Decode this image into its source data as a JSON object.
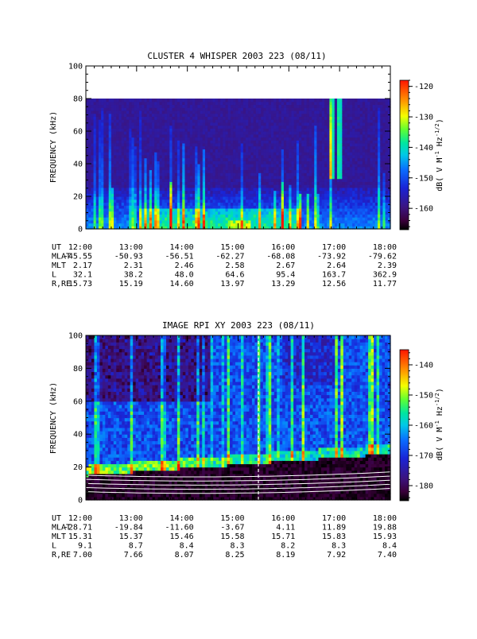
{
  "chart_data": [
    {
      "type": "heatmap",
      "title": "CLUSTER 4 WHISPER 2003 223 (08/11)",
      "ylabel": "FREQUENCY (kHz)",
      "ylim": [
        0,
        100
      ],
      "y_ticks": [
        "0",
        "20",
        "40",
        "60",
        "80",
        "100"
      ],
      "x_ticks": [
        "12:00",
        "13:00",
        "14:00",
        "15:00",
        "16:00",
        "17:00",
        "18:00"
      ],
      "xlim": [
        "12:00",
        "18:00"
      ],
      "data_upper_frequency_khz": 80,
      "colorbar": {
        "label": "dB( V M-1 Hz-1/2)",
        "ticks": [
          "-120",
          "-130",
          "-140",
          "-150",
          "-160"
        ],
        "range": [
          -167,
          -118
        ]
      },
      "ephemeris": {
        "rows": [
          {
            "label": "UT",
            "values": [
              "12:00",
              "13:00",
              "14:00",
              "15:00",
              "16:00",
              "17:00",
              "18:00"
            ]
          },
          {
            "label": "MLAT",
            "values": [
              "-45.55",
              "-50.93",
              "-56.51",
              "-62.27",
              "-68.08",
              "-73.92",
              "-79.62"
            ]
          },
          {
            "label": "MLT",
            "values": [
              "2.17",
              "2.31",
              "2.46",
              "2.58",
              "2.67",
              "2.64",
              "2.39"
            ]
          },
          {
            "label": "L",
            "values": [
              "32.1",
              "38.2",
              "48.0",
              "64.6",
              "95.4",
              "163.7",
              "362.9"
            ]
          },
          {
            "label": "R,RE",
            "values": [
              "15.73",
              "15.19",
              "14.60",
              "13.97",
              "13.29",
              "12.56",
              "11.77"
            ]
          }
        ]
      }
    },
    {
      "type": "heatmap",
      "title": "IMAGE RPI XY 2003 223 (08/11)",
      "ylabel": "FREQUENCY (kHz)",
      "ylim": [
        0,
        100
      ],
      "y_ticks": [
        "0",
        "20",
        "40",
        "60",
        "80",
        "100"
      ],
      "x_ticks": [
        "12:00",
        "13:00",
        "14:00",
        "15:00",
        "16:00",
        "17:00",
        "18:00"
      ],
      "xlim": [
        "12:00",
        "18:00"
      ],
      "colorbar": {
        "label": "dB( V M-1 Hz-1/2)",
        "ticks": [
          "-140",
          "-150",
          "-160",
          "-170",
          "-180"
        ],
        "range": [
          -185,
          -135
        ]
      },
      "ephemeris": {
        "rows": [
          {
            "label": "UT",
            "values": [
              "12:00",
              "13:00",
              "14:00",
              "15:00",
              "16:00",
              "17:00",
              "18:00"
            ]
          },
          {
            "label": "MLAT",
            "values": [
              "-28.71",
              "-19.84",
              "-11.60",
              "-3.67",
              "4.11",
              "11.89",
              "19.88"
            ]
          },
          {
            "label": "MLT",
            "values": [
              "15.31",
              "15.37",
              "15.46",
              "15.58",
              "15.71",
              "15.83",
              "15.93"
            ]
          },
          {
            "label": "L",
            "values": [
              "9.1",
              "8.7",
              "8.4",
              "8.3",
              "8.2",
              "8.3",
              "8.4"
            ]
          },
          {
            "label": "R,RE",
            "values": [
              "7.00",
              "7.66",
              "8.07",
              "8.25",
              "8.19",
              "7.92",
              "7.40"
            ]
          }
        ]
      }
    }
  ]
}
